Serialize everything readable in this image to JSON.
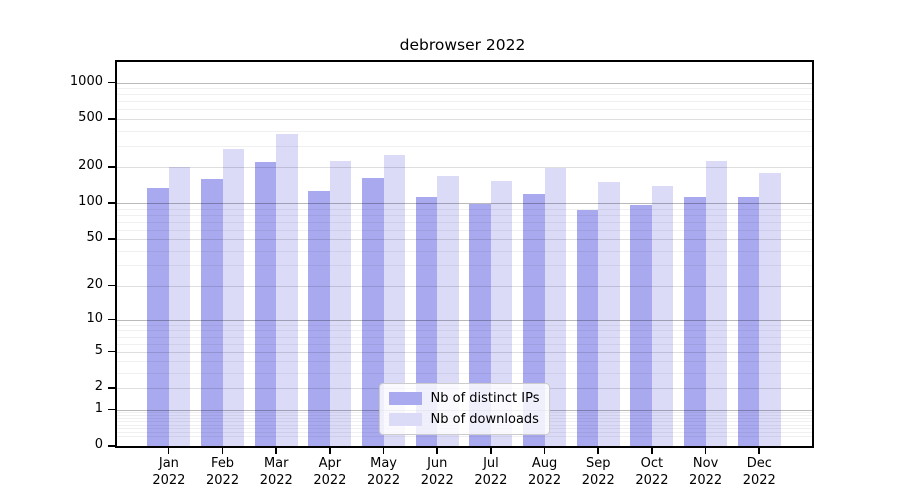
{
  "title": "debrowser 2022",
  "chart_data": {
    "type": "bar",
    "title": "debrowser 2022",
    "xlabel": "",
    "ylabel": "",
    "y_scale": "log10(1+y)",
    "y_ticks": [
      0,
      1,
      2,
      5,
      10,
      20,
      50,
      100,
      200,
      500,
      1000
    ],
    "ylim": [
      0,
      1480
    ],
    "grid": true,
    "gridlines_over_bars": true,
    "legend_position": "lower center",
    "year": "2022",
    "categories": [
      "Jan",
      "Feb",
      "Mar",
      "Apr",
      "May",
      "Jun",
      "Jul",
      "Aug",
      "Sep",
      "Oct",
      "Nov",
      "Dec"
    ],
    "series": [
      {
        "name": "Nb of distinct IPs",
        "color": "#a9a9f0",
        "values": [
          135,
          160,
          220,
          126,
          163,
          112,
          98,
          119,
          88,
          96,
          112,
          112
        ]
      },
      {
        "name": "Nb of downloads",
        "color": "#dbdbf8",
        "values": [
          200,
          280,
          375,
          226,
          250,
          170,
          153,
          195,
          150,
          140,
          224,
          180
        ]
      }
    ]
  },
  "legend": {
    "item1": "Nb of distinct IPs",
    "item2": "Nb of downloads"
  }
}
